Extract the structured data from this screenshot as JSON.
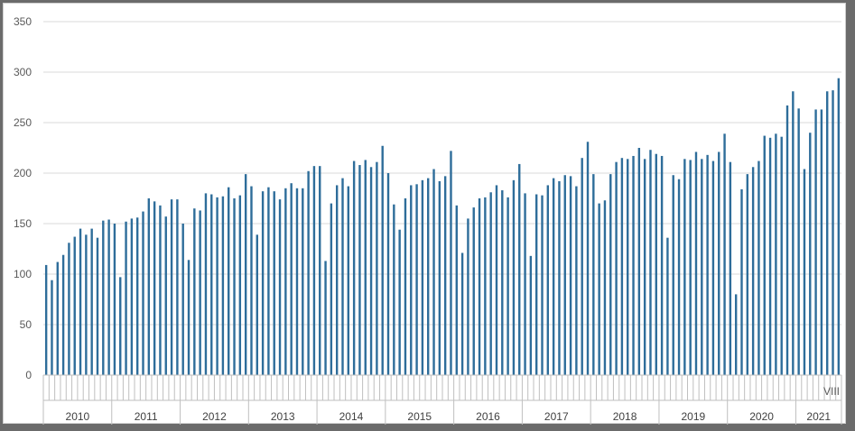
{
  "chart_data": {
    "type": "bar",
    "title": "",
    "xlabel": "",
    "ylabel": "",
    "ylim": [
      0,
      350
    ],
    "yticks": [
      0,
      50,
      100,
      150,
      200,
      250,
      300,
      350
    ],
    "grid": true,
    "legend": "none",
    "bar_color": "#2e6d9a",
    "grid_color": "#d9d9d9",
    "groups": [
      {
        "year": "2010",
        "values": [
          109,
          94,
          112,
          119,
          131,
          137,
          145,
          139,
          145,
          136,
          153,
          154
        ]
      },
      {
        "year": "2011",
        "values": [
          150,
          97,
          152,
          155,
          156,
          162,
          175,
          172,
          168,
          157,
          174,
          174
        ]
      },
      {
        "year": "2012",
        "values": [
          150,
          114,
          165,
          163,
          180,
          179,
          176,
          177,
          186,
          175,
          178,
          199
        ]
      },
      {
        "year": "2013",
        "values": [
          187,
          139,
          182,
          186,
          182,
          174,
          185,
          190,
          185,
          185,
          202,
          207
        ]
      },
      {
        "year": "2014",
        "values": [
          207,
          113,
          170,
          188,
          195,
          187,
          212,
          208,
          213,
          206,
          211,
          227
        ]
      },
      {
        "year": "2015",
        "values": [
          200,
          169,
          144,
          175,
          188,
          189,
          193,
          195,
          204,
          192,
          197,
          222
        ]
      },
      {
        "year": "2016",
        "values": [
          168,
          121,
          155,
          166,
          175,
          176,
          181,
          188,
          183,
          176,
          193,
          209
        ]
      },
      {
        "year": "2017",
        "values": [
          180,
          118,
          179,
          178,
          188,
          195,
          192,
          198,
          197,
          187,
          215,
          231
        ]
      },
      {
        "year": "2018",
        "values": [
          199,
          170,
          173,
          199,
          211,
          215,
          214,
          217,
          225,
          214,
          223,
          219
        ]
      },
      {
        "year": "2019",
        "values": [
          217,
          136,
          198,
          194,
          214,
          213,
          221,
          214,
          218,
          212,
          221,
          239
        ]
      },
      {
        "year": "2020",
        "values": [
          211,
          80,
          184,
          199,
          206,
          212,
          237,
          235,
          239,
          236,
          267,
          281
        ]
      },
      {
        "year": "2021",
        "values": [
          264,
          204,
          240,
          263,
          263,
          281,
          282,
          294
        ]
      }
    ],
    "last_month_label": "VIII"
  }
}
